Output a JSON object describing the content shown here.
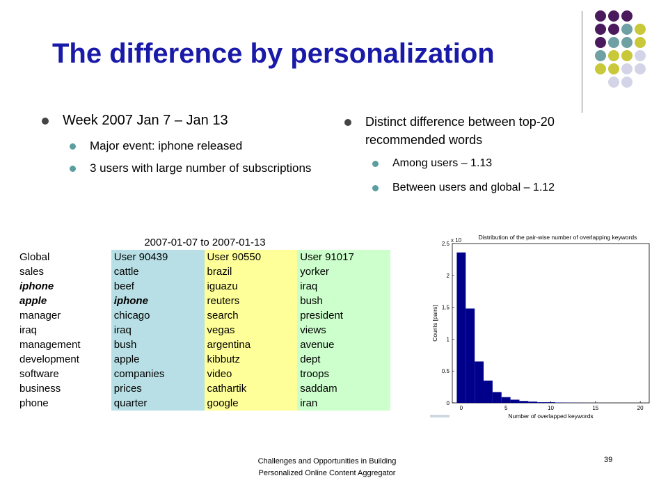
{
  "slide": {
    "title": "The difference by personalization",
    "left_bullet": "Week 2007 Jan 7 – Jan 13",
    "left_sub": [
      "Major event: iphone released",
      "3 users with large number of subscriptions"
    ],
    "right_bullet": "Distinct difference between top-20 recommended words",
    "right_sub": [
      "Among users – 1.13",
      "Between users and global – 1.12"
    ],
    "footer_line1": "Challenges and Opportunities in Building",
    "footer_line2": "Personalized Online Content Aggregator",
    "page_number": "39"
  },
  "colors": {
    "title": "#1a1aa8",
    "dot_purple": "#4a1a5c",
    "dot_teal": "#6fa0a3",
    "dot_yellow": "#c8c83a",
    "dot_lavender": "#d4d4e8",
    "table_blue": "#b7dfe5",
    "table_yellow": "#ffff99",
    "table_green": "#ccffcc",
    "bar_color": "#00008b"
  },
  "table": {
    "caption": "2007-01-07 to 2007-01-13",
    "headers": [
      "Global",
      "User 90439",
      "User 90550",
      "User 91017"
    ],
    "rows": [
      [
        "sales",
        "cattle",
        "brazil",
        "yorker"
      ],
      [
        "iphone",
        "beef",
        "iguazu",
        "iraq"
      ],
      [
        "apple",
        "iphone",
        "reuters",
        "bush"
      ],
      [
        "manager",
        "chicago",
        "search",
        "president"
      ],
      [
        "iraq",
        "iraq",
        "vegas",
        "views"
      ],
      [
        "management",
        "bush",
        "argentina",
        "avenue"
      ],
      [
        "development",
        "apple",
        "kibbutz",
        "dept"
      ],
      [
        "software",
        "companies",
        "video",
        "troops"
      ],
      [
        "business",
        "prices",
        "cathartik",
        "saddam"
      ],
      [
        "phone",
        "quarter",
        "google",
        "iran"
      ]
    ]
  },
  "chart_data": {
    "type": "bar",
    "title": "Distribution of the pair-wise number of overlapping keywords",
    "xlabel": "Number of overlapped keywords",
    "ylabel": "Counts [pairs]",
    "y_multiplier": "x 10",
    "xlim": [
      -1,
      21
    ],
    "ylim": [
      0,
      2.5
    ],
    "x_ticks": [
      "0",
      "5",
      "10",
      "15",
      "20"
    ],
    "y_ticks": [
      "0",
      "0.5",
      "1",
      "1.5",
      "2",
      "2.5"
    ],
    "x": [
      0,
      1,
      2,
      3,
      4,
      5,
      6,
      7,
      8,
      9,
      10,
      11,
      12,
      13,
      14,
      15,
      16,
      17,
      18,
      19,
      20
    ],
    "values": [
      2.36,
      1.48,
      0.65,
      0.35,
      0.17,
      0.09,
      0.05,
      0.03,
      0.02,
      0.01,
      0.01,
      0.005,
      0.003,
      0.002,
      0.001,
      0.001,
      0.0,
      0.0,
      0.0,
      0.0,
      0.0
    ]
  }
}
